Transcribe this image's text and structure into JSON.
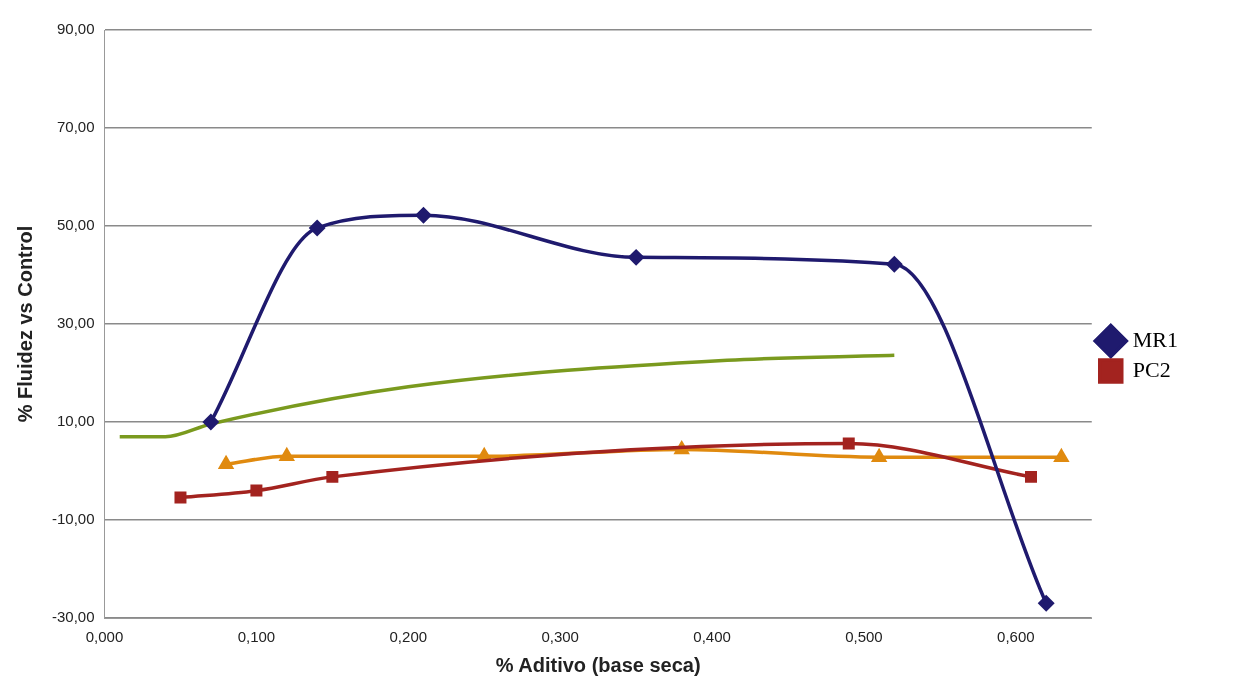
{
  "chart_data": {
    "type": "line",
    "xlabel": "% Aditivo (base seca)",
    "ylabel": "% Fluidez vs Control",
    "xlim": [
      0,
      0.65
    ],
    "xticks": [
      {
        "value": 0,
        "label": "0,000"
      },
      {
        "value": 0.1,
        "label": "0,100"
      },
      {
        "value": 0.2,
        "label": "0,200"
      },
      {
        "value": 0.3,
        "label": "0,300"
      },
      {
        "value": 0.4,
        "label": "0,400"
      },
      {
        "value": 0.5,
        "label": "0,500"
      },
      {
        "value": 0.6,
        "label": "0,600"
      }
    ],
    "ylim": [
      -30,
      90
    ],
    "yticks": [
      {
        "value": -30,
        "label": "-30,00"
      },
      {
        "value": -10,
        "label": "-10,00"
      },
      {
        "value": 10,
        "label": "10,00"
      },
      {
        "value": 30,
        "label": "30,00"
      },
      {
        "value": 50,
        "label": "50,00"
      },
      {
        "value": 70,
        "label": "70,00"
      },
      {
        "value": 90,
        "label": "90,00"
      }
    ],
    "grid": "y",
    "legend": "right",
    "series": [
      {
        "name": "MR1",
        "color": "#1f1a6e",
        "marker": "diamond",
        "x": [
          0.07,
          0.14,
          0.21,
          0.35,
          0.52,
          0.62
        ],
        "values": [
          10,
          49.6,
          52.2,
          43.6,
          42.2,
          -27
        ]
      },
      {
        "name": "PC2",
        "color": "#a3231f",
        "marker": "square",
        "x": [
          0.05,
          0.1,
          0.15,
          0.49,
          0.61
        ],
        "values": [
          -5.4,
          -4,
          -1.2,
          5.6,
          -1.2
        ]
      },
      {
        "color": "#e08a0f",
        "marker": "triangle",
        "x": [
          0.08,
          0.12,
          0.25,
          0.38,
          0.51,
          0.63
        ],
        "values": [
          1.4,
          3,
          3,
          4.4,
          2.8,
          2.8
        ]
      },
      {
        "color": "#7a9a1e",
        "marker": "none",
        "x": [
          0.01,
          0.04,
          0.07,
          0.2,
          0.41,
          0.52
        ],
        "values": [
          7,
          7,
          9.6,
          17.2,
          22.6,
          23.6
        ]
      }
    ]
  }
}
